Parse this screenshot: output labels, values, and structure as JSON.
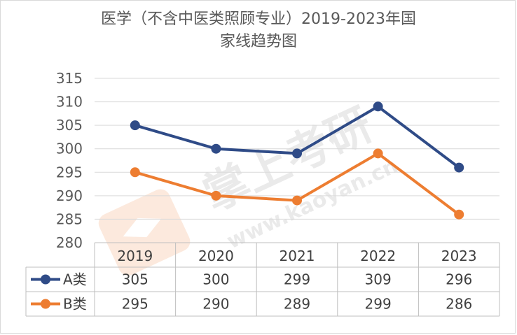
{
  "chart_data": {
    "type": "line",
    "title_lines": [
      "医学（不含中医类照顾专业）2019-2023年国",
      "家线趋势图"
    ],
    "categories": [
      "2019",
      "2020",
      "2021",
      "2022",
      "2023"
    ],
    "ylim": [
      280,
      315
    ],
    "yticks": [
      280,
      285,
      290,
      295,
      300,
      305,
      310,
      315
    ],
    "grid": true,
    "data_table": true,
    "series": [
      {
        "name": "A类",
        "values": [
          305,
          300,
          299,
          309,
          296
        ],
        "color": "#2f4b87"
      },
      {
        "name": "B类",
        "values": [
          295,
          290,
          289,
          299,
          286
        ],
        "color": "#ed7d31"
      }
    ]
  },
  "watermark": {
    "brand": "掌上考研",
    "url": "www.kaoyan.cn"
  }
}
